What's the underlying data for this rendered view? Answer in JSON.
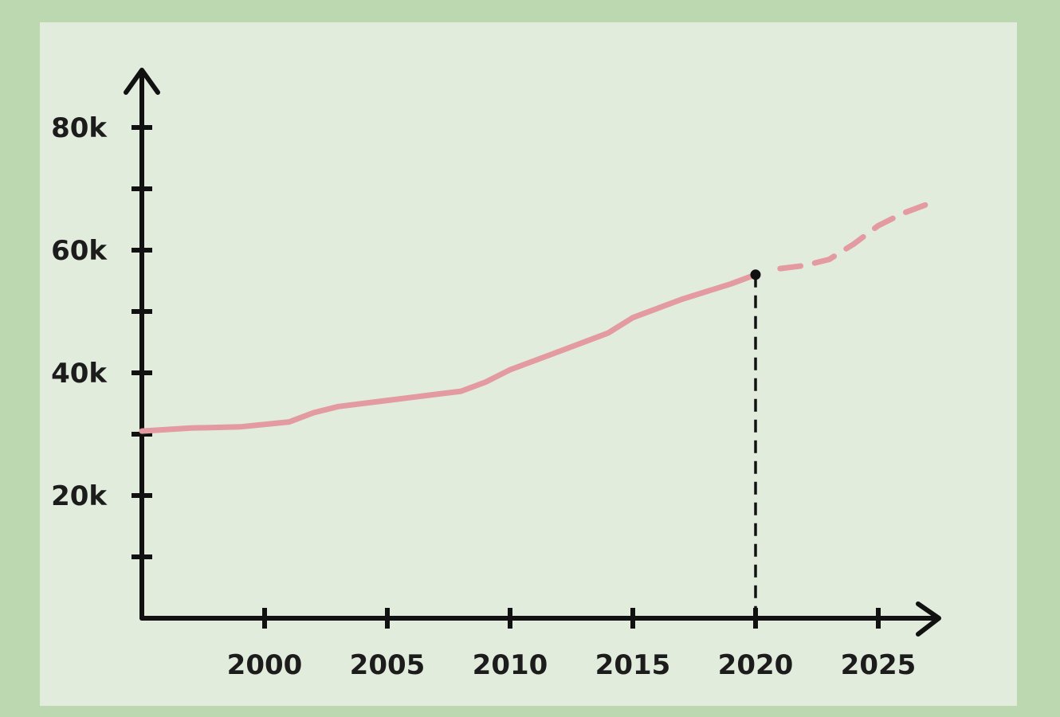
{
  "chart_data": {
    "type": "line",
    "title": "",
    "xlabel": "",
    "ylabel": "",
    "x_ticks": [
      "2000",
      "2005",
      "2010",
      "2015",
      "2020",
      "2025"
    ],
    "y_ticks": [
      "20k",
      "40k",
      "60k",
      "80k"
    ],
    "xlim": [
      1995,
      2027.5
    ],
    "ylim": [
      0,
      90000
    ],
    "grid": false,
    "series": [
      {
        "style": "solid",
        "color": "#e39aa0",
        "x": [
          1995,
          1997,
          1999,
          2001,
          2002,
          2003,
          2005,
          2007,
          2008,
          2009,
          2010,
          2012,
          2014,
          2015,
          2017,
          2019,
          2020
        ],
        "y": [
          30500,
          31000,
          31200,
          32000,
          33500,
          34500,
          35500,
          36500,
          37000,
          38500,
          40500,
          43500,
          46500,
          49000,
          52000,
          54500,
          56000
        ]
      },
      {
        "style": "dashed",
        "color": "#e39aa0",
        "x": [
          2021,
          2022,
          2023,
          2024,
          2025,
          2026,
          2027
        ],
        "y": [
          57000,
          57500,
          58500,
          61000,
          64000,
          66000,
          67500
        ]
      }
    ],
    "marker": {
      "x": 2020,
      "y": 56000,
      "color": "#111111"
    },
    "reference_line": {
      "x": 2020,
      "style": "dashed",
      "color": "#111111"
    }
  }
}
